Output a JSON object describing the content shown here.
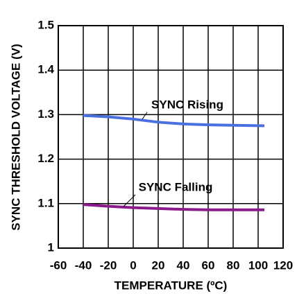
{
  "chart_data": {
    "type": "line",
    "x_label": "TEMPERATURE (ºC)",
    "y_label": "SYNC THRESHOLD VOLTAGE (V)",
    "x": [
      -40,
      -20,
      0,
      20,
      40,
      60,
      80,
      105
    ],
    "series": [
      {
        "name": "SYNC Rising",
        "color": "#4a6fe0",
        "values": [
          1.298,
          1.295,
          1.29,
          1.283,
          1.279,
          1.277,
          1.276,
          1.275
        ]
      },
      {
        "name": "SYNC Falling",
        "color": "#8b1a8b",
        "values": [
          1.098,
          1.094,
          1.091,
          1.089,
          1.087,
          1.086,
          1.086,
          1.086
        ]
      }
    ],
    "xlim": [
      -60,
      120
    ],
    "xticks": [
      -60,
      -40,
      -20,
      0,
      20,
      40,
      60,
      80,
      100,
      120
    ],
    "ylim": [
      1,
      1.5
    ],
    "yticks": [
      1,
      1.1,
      1.2,
      1.3,
      1.4,
      1.5
    ],
    "grid": true
  }
}
